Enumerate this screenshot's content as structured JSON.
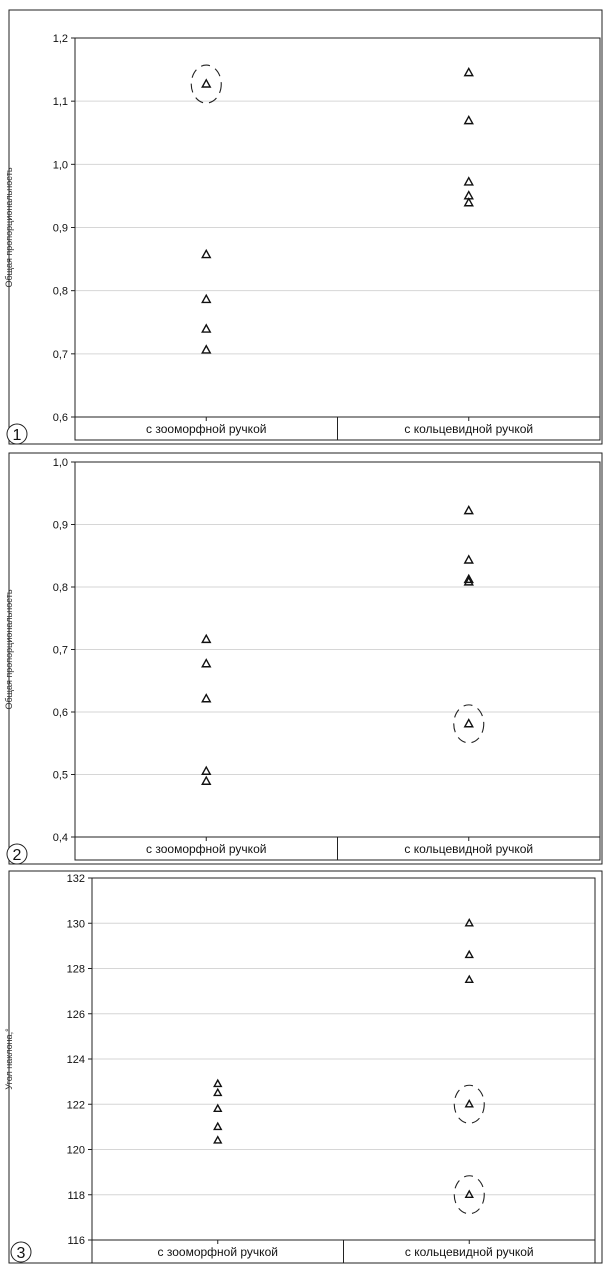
{
  "chart_data": [
    {
      "type": "scatter",
      "panel_number": "1",
      "ylabel": "Общая пропорциональность",
      "xlabel": "",
      "ylim": [
        0.6,
        1.2
      ],
      "yticks": [
        0.6,
        0.7,
        0.8,
        0.9,
        1.0,
        1.1,
        1.2
      ],
      "ytick_labels": [
        "0,6",
        "0,7",
        "0,8",
        "0,9",
        "1,0",
        "1,1",
        "1,2"
      ],
      "categories": [
        "с зооморфной ручкой",
        "с кольцевидной ручкой"
      ],
      "series": [
        {
          "category": "с зооморфной ручкой",
          "values": [
            1.127,
            0.857,
            0.786,
            0.739,
            0.706
          ]
        },
        {
          "category": "с кольцевидной ручкой",
          "values": [
            1.145,
            1.069,
            0.972,
            0.95,
            0.939
          ]
        }
      ],
      "highlighted": [
        {
          "category": "с зооморфной ручкой",
          "value": 1.127
        }
      ],
      "grid": true
    },
    {
      "type": "scatter",
      "panel_number": "2",
      "ylabel": "Общая пропорциональность",
      "xlabel": "",
      "ylim": [
        0.4,
        1.0
      ],
      "yticks": [
        0.4,
        0.5,
        0.6,
        0.7,
        0.8,
        0.9,
        1.0
      ],
      "ytick_labels": [
        "0,4",
        "0,5",
        "0,6",
        "0,7",
        "0,8",
        "0,9",
        "1,0"
      ],
      "categories": [
        "с зооморфной ручкой",
        "с кольцевидной ручкой"
      ],
      "series": [
        {
          "category": "с зооморфной ручкой",
          "values": [
            0.716,
            0.677,
            0.621,
            0.505,
            0.489
          ]
        },
        {
          "category": "с кольцевидной ручкой",
          "values": [
            0.922,
            0.843,
            0.812,
            0.808,
            0.581
          ]
        }
      ],
      "highlighted": [
        {
          "category": "с кольцевидной ручкой",
          "value": 0.581
        }
      ],
      "grid": true
    },
    {
      "type": "scatter",
      "panel_number": "3",
      "ylabel": "Угол наклона,°",
      "xlabel": "",
      "ylim": [
        116,
        132
      ],
      "yticks": [
        116,
        118,
        120,
        122,
        124,
        126,
        128,
        130,
        132
      ],
      "ytick_labels": [
        "116",
        "118",
        "120",
        "122",
        "124",
        "126",
        "128",
        "130",
        "132"
      ],
      "categories": [
        "с зооморфной ручкой",
        "с кольцевидной ручкой"
      ],
      "series": [
        {
          "category": "с зооморфной ручкой",
          "values": [
            122.9,
            122.5,
            121.8,
            121.0,
            120.4
          ]
        },
        {
          "category": "с кольцевидной ручкой",
          "values": [
            130.0,
            128.6,
            127.5,
            122.0,
            118.0
          ]
        }
      ],
      "highlighted": [
        {
          "category": "с кольцевидной ручкой",
          "value": 122.0
        },
        {
          "category": "с кольцевидной ручкой",
          "value": 118.0
        }
      ],
      "grid": true
    }
  ]
}
